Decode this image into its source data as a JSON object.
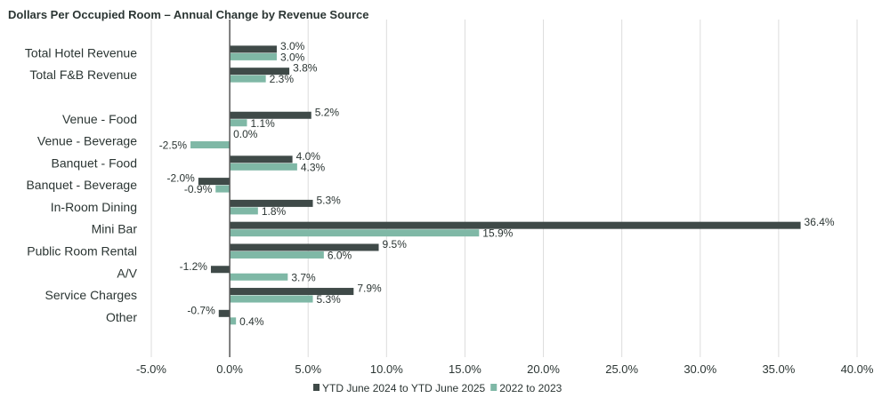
{
  "chart_data": {
    "type": "bar",
    "orientation": "horizontal",
    "title": "Dollars Per Occupied Room – Annual Change by Revenue Source",
    "categories": [
      "Total Hotel Revenue",
      "Total F&B Revenue",
      "",
      "Venue - Food",
      "Venue - Beverage",
      "Banquet - Food",
      "Banquet - Beverage",
      "In-Room Dining",
      "Mini Bar",
      "Public Room Rental",
      "A/V",
      "Service Charges",
      "Other"
    ],
    "series": [
      {
        "name": "YTD June 2024 to YTD June 2025",
        "color": "#3f4a48",
        "values": [
          3.0,
          3.8,
          null,
          5.2,
          0.0,
          4.0,
          -2.0,
          5.3,
          36.4,
          9.5,
          -1.2,
          7.9,
          -0.7
        ]
      },
      {
        "name": "2022 to 2023",
        "color": "#7fb8a6",
        "values": [
          3.0,
          2.3,
          null,
          1.1,
          -2.5,
          4.3,
          -0.9,
          1.8,
          15.9,
          6.0,
          3.7,
          5.3,
          0.4
        ]
      }
    ],
    "xlim": [
      -5,
      40
    ],
    "xticks": [
      "-5.0%",
      "0.0%",
      "5.0%",
      "10.0%",
      "15.0%",
      "20.0%",
      "25.0%",
      "30.0%",
      "35.0%",
      "40.0%"
    ],
    "xtick_values": [
      -5,
      0,
      5,
      10,
      15,
      20,
      25,
      30,
      35,
      40
    ],
    "grid": true,
    "legend": "bottom",
    "unit_suffix": "%"
  }
}
